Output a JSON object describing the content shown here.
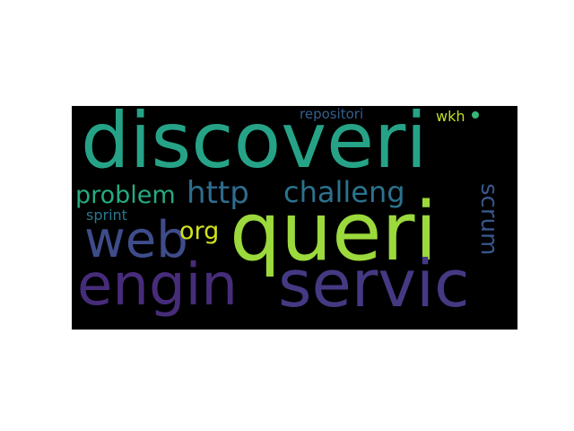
{
  "wordcloud": {
    "words": {
      "discoveri": {
        "text": "discoveri",
        "color": "#26a387"
      },
      "queri": {
        "text": "queri",
        "color": "#9bd93c"
      },
      "servic": {
        "text": "servic",
        "color": "#443a83"
      },
      "engin": {
        "text": "engin",
        "color": "#472c7a"
      },
      "web": {
        "text": "web",
        "color": "#3e4c8a"
      },
      "http": {
        "text": "http",
        "color": "#2e6d8e"
      },
      "challeng": {
        "text": "challeng",
        "color": "#2c728e"
      },
      "problem": {
        "text": "problem",
        "color": "#25ab82"
      },
      "org": {
        "text": "org",
        "color": "#d2e21b"
      },
      "sprint": {
        "text": "sprint",
        "color": "#2a788e"
      },
      "repositori": {
        "text": "repositori",
        "color": "#355f8d"
      },
      "wkh": {
        "text": "wkh",
        "color": "#c0df25"
      },
      "scrum": {
        "text": "scrum",
        "color": "#39568c"
      }
    },
    "dot_color": "#35b779"
  }
}
